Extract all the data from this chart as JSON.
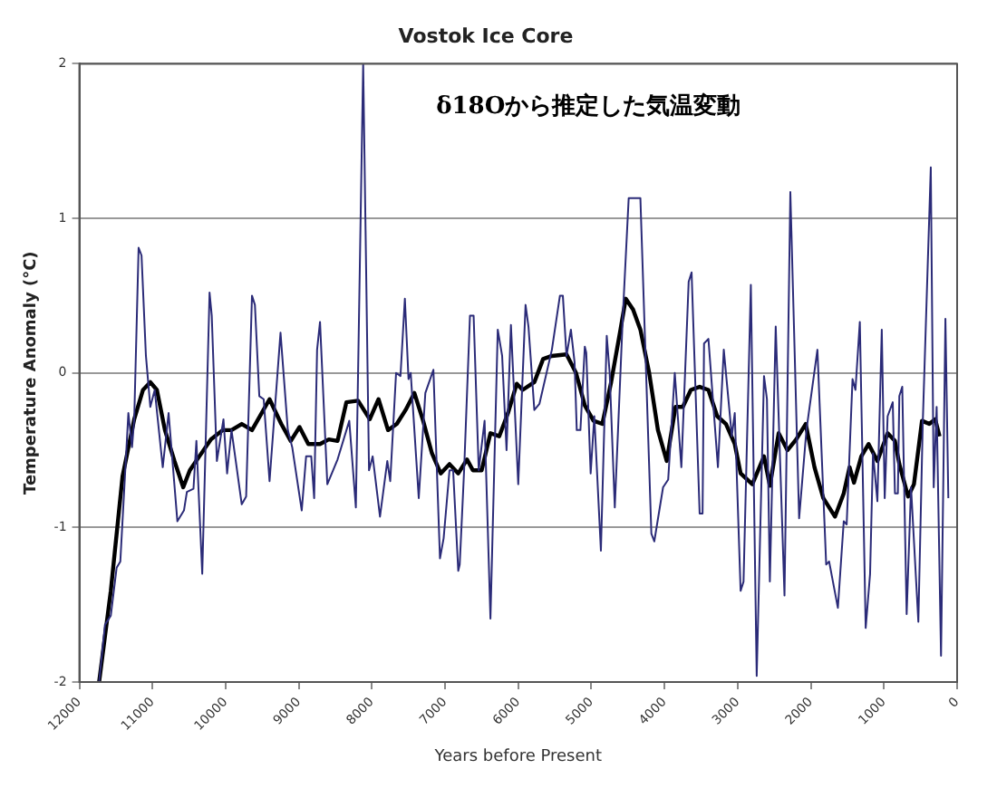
{
  "chart_data": {
    "type": "line",
    "title": "Vostok Ice Core",
    "xlabel": "Years before Present",
    "ylabel": "Temperature Anomaly (°C)",
    "annotations": [
      "δ18Oから推定した気温変動"
    ],
    "xlim": [
      12000,
      0
    ],
    "xticks": [
      12000,
      11000,
      10000,
      9000,
      8000,
      7000,
      6000,
      5000,
      4000,
      3000,
      2000,
      1000,
      0
    ],
    "ylim": [
      -2,
      2
    ],
    "yticks": [
      -2,
      -1,
      0,
      1,
      2
    ],
    "grid": "y",
    "legend": false,
    "marker": "none",
    "line_style": "solid",
    "series": [
      {
        "color": "#2b2b78",
        "x": [
          11730,
          11650,
          11570,
          11490,
          11440,
          11330,
          11280,
          11250,
          11190,
          11150,
          11090,
          11030,
          10970,
          10860,
          10780,
          10660,
          10570,
          10530,
          10440,
          10400,
          10320,
          10220,
          10190,
          10120,
          10030,
          9980,
          9920,
          9780,
          9720,
          9640,
          9600,
          9540,
          9480,
          9400,
          9250,
          9150,
          9090,
          8960,
          8900,
          8830,
          8790,
          8750,
          8710,
          8610,
          8470,
          8310,
          8220,
          8120,
          8040,
          7990,
          7890,
          7790,
          7750,
          7670,
          7610,
          7550,
          7500,
          7470,
          7360,
          7270,
          7160,
          7070,
          7020,
          6940,
          6890,
          6820,
          6800,
          6740,
          6660,
          6610,
          6540,
          6460,
          6380,
          6280,
          6220,
          6160,
          6100,
          6000,
          5900,
          5860,
          5780,
          5710,
          5540,
          5430,
          5390,
          5340,
          5280,
          5230,
          5200,
          5150,
          5090,
          5070,
          5010,
          4960,
          4870,
          4790,
          4750,
          4680,
          4570,
          4490,
          4330,
          4180,
          4140,
          4020,
          3950,
          3860,
          3770,
          3670,
          3630,
          3520,
          3480,
          3460,
          3400,
          3270,
          3190,
          3080,
          3040,
          2960,
          2920,
          2820,
          2740,
          2640,
          2600,
          2560,
          2480,
          2360,
          2280,
          2160,
          2060,
          1910,
          1790,
          1750,
          1630,
          1550,
          1510,
          1430,
          1390,
          1330,
          1250,
          1190,
          1150,
          1090,
          1030,
          990,
          950,
          880,
          850,
          810,
          790,
          750,
          690,
          630,
          530,
          470,
          360,
          320,
          280,
          220,
          160,
          120
        ],
        "values": [
          -2,
          -1.63,
          -1.57,
          -1.26,
          -1.22,
          -0.26,
          -0.48,
          -0.3,
          0.81,
          0.76,
          0.11,
          -0.22,
          -0.11,
          -0.61,
          -0.26,
          -0.96,
          -0.89,
          -0.77,
          -0.75,
          -0.44,
          -1.3,
          0.52,
          0.37,
          -0.57,
          -0.3,
          -0.65,
          -0.37,
          -0.85,
          -0.8,
          0.5,
          0.44,
          -0.15,
          -0.17,
          -0.7,
          0.26,
          -0.37,
          -0.48,
          -0.89,
          -0.54,
          -0.54,
          -0.81,
          0.15,
          0.33,
          -0.72,
          -0.56,
          -0.31,
          -0.87,
          2,
          -0.63,
          -0.54,
          -0.93,
          -0.57,
          -0.7,
          0,
          -0.02,
          0.48,
          -0.04,
          0,
          -0.81,
          -0.13,
          0.02,
          -1.2,
          -1.07,
          -0.63,
          -0.63,
          -1.28,
          -1.24,
          -0.63,
          0.37,
          0.37,
          -0.63,
          -0.31,
          -1.59,
          0.28,
          0.11,
          -0.5,
          0.31,
          -0.72,
          0.44,
          0.3,
          -0.24,
          -0.2,
          0.15,
          0.5,
          0.5,
          0.11,
          0.28,
          0.07,
          -0.37,
          -0.37,
          0.17,
          0.13,
          -0.65,
          -0.28,
          -1.15,
          0.24,
          0,
          -0.87,
          0.37,
          1.13,
          1.13,
          -1.04,
          -1.09,
          -0.74,
          -0.69,
          0,
          -0.61,
          0.59,
          0.65,
          -0.91,
          -0.91,
          0.19,
          0.22,
          -0.61,
          0.15,
          -0.41,
          -0.26,
          -1.41,
          -1.35,
          0.57,
          -1.96,
          -0.02,
          -0.17,
          -1.35,
          0.3,
          -1.44,
          1.17,
          -0.94,
          -0.37,
          0.15,
          -1.24,
          -1.22,
          -1.52,
          -0.96,
          -0.98,
          -0.04,
          -0.11,
          0.33,
          -1.65,
          -1.3,
          -0.52,
          -0.83,
          0.28,
          -0.81,
          -0.28,
          -0.19,
          -0.78,
          -0.78,
          -0.15,
          -0.09,
          -1.56,
          -0.74,
          -1.61,
          -0.33,
          1.33,
          -0.74,
          -0.22,
          -1.83,
          0.35,
          -0.81
        ]
      },
      {
        "color": "#000000",
        "x": [
          11730,
          11570,
          11410,
          11250,
          11130,
          11030,
          10940,
          10830,
          10700,
          10580,
          10490,
          10360,
          10200,
          10040,
          9920,
          9780,
          9640,
          9400,
          9240,
          9110,
          8990,
          8870,
          8710,
          8590,
          8470,
          8350,
          8190,
          8030,
          7910,
          7780,
          7660,
          7540,
          7420,
          7300,
          7180,
          7060,
          6940,
          6820,
          6700,
          6620,
          6500,
          6380,
          6260,
          6140,
          6020,
          5940,
          5780,
          5660,
          5540,
          5340,
          5210,
          5090,
          4970,
          4850,
          4730,
          4610,
          4530,
          4430,
          4330,
          4210,
          4090,
          3970,
          3850,
          3750,
          3640,
          3520,
          3400,
          3280,
          3160,
          3040,
          2960,
          2800,
          2640,
          2560,
          2440,
          2320,
          2200,
          2070,
          1950,
          1830,
          1670,
          1550,
          1470,
          1410,
          1310,
          1210,
          1090,
          950,
          850,
          790,
          670,
          590,
          480,
          380,
          300,
          240
        ],
        "values": [
          -2,
          -1.41,
          -0.67,
          -0.3,
          -0.11,
          -0.06,
          -0.11,
          -0.37,
          -0.57,
          -0.74,
          -0.63,
          -0.54,
          -0.43,
          -0.37,
          -0.37,
          -0.33,
          -0.37,
          -0.17,
          -0.33,
          -0.44,
          -0.35,
          -0.46,
          -0.46,
          -0.43,
          -0.44,
          -0.19,
          -0.18,
          -0.3,
          -0.17,
          -0.37,
          -0.33,
          -0.24,
          -0.13,
          -0.31,
          -0.52,
          -0.65,
          -0.59,
          -0.65,
          -0.56,
          -0.63,
          -0.63,
          -0.39,
          -0.41,
          -0.26,
          -0.07,
          -0.11,
          -0.06,
          0.09,
          0.11,
          0.12,
          0,
          -0.21,
          -0.31,
          -0.33,
          -0.06,
          0.26,
          0.48,
          0.41,
          0.28,
          0,
          -0.37,
          -0.57,
          -0.22,
          -0.22,
          -0.11,
          -0.09,
          -0.11,
          -0.28,
          -0.33,
          -0.46,
          -0.65,
          -0.72,
          -0.54,
          -0.73,
          -0.39,
          -0.5,
          -0.43,
          -0.33,
          -0.61,
          -0.81,
          -0.93,
          -0.78,
          -0.61,
          -0.71,
          -0.54,
          -0.46,
          -0.57,
          -0.39,
          -0.44,
          -0.59,
          -0.8,
          -0.72,
          -0.31,
          -0.33,
          -0.3,
          -0.41
        ]
      }
    ]
  }
}
